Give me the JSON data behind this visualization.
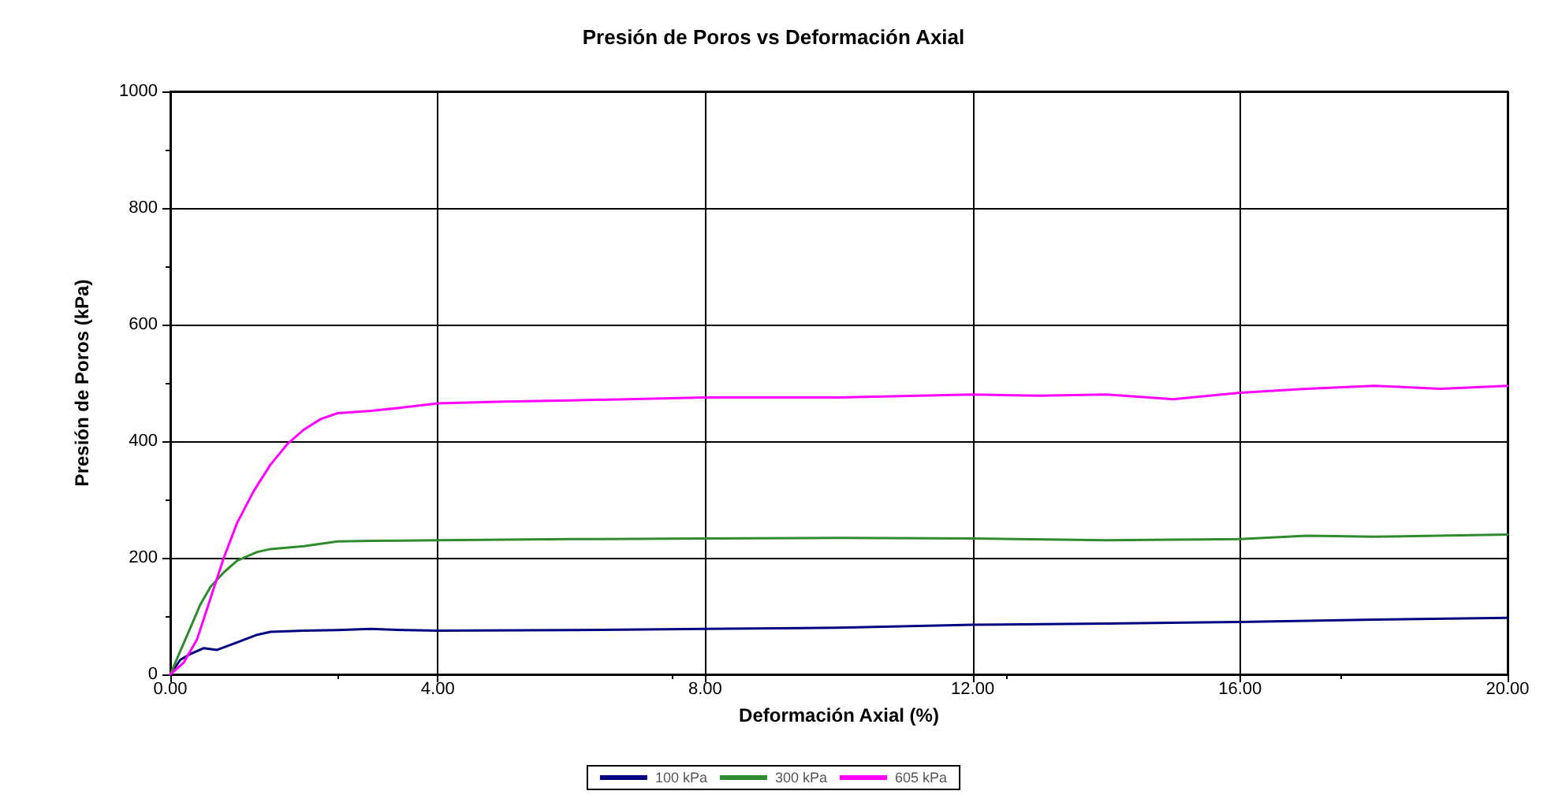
{
  "chart_data": {
    "type": "line",
    "title": "Presión de Poros vs Deformación Axial",
    "xlabel": "Deformación Axial (%)",
    "ylabel": "Presión de Poros (kPa)",
    "xlim": [
      0,
      20
    ],
    "xticks": [
      {
        "value": 0,
        "label": "0.00"
      },
      {
        "value": 4,
        "label": "4.00"
      },
      {
        "value": 8,
        "label": "8.00"
      },
      {
        "value": 12,
        "label": "12.00"
      },
      {
        "value": 16,
        "label": "16.00"
      },
      {
        "value": 20,
        "label": "20.00"
      }
    ],
    "ylim": [
      0,
      1000
    ],
    "yticks": [
      0,
      200,
      400,
      600,
      800,
      1000
    ],
    "grid": true,
    "legend": "bottom",
    "marker": "none",
    "line_style": "solid",
    "series": [
      {
        "name": "100 kPa",
        "color": "#000080",
        "x": [
          0,
          0.15,
          0.3,
          0.5,
          0.7,
          1.0,
          1.3,
          1.5,
          2.0,
          2.5,
          3.0,
          3.5,
          4.0,
          6.0,
          8.0,
          10.0,
          12.0,
          14.0,
          16.0,
          18.0,
          20.0
        ],
        "values": [
          0,
          25,
          35,
          45,
          42,
          55,
          68,
          73,
          75,
          76,
          78,
          76,
          75,
          76,
          78,
          80,
          85,
          87,
          90,
          94,
          97
        ]
      },
      {
        "name": "300 kPa",
        "color": "#2e8b2e",
        "x": [
          0,
          0.15,
          0.3,
          0.45,
          0.6,
          0.8,
          1.0,
          1.3,
          1.5,
          2.0,
          2.5,
          3.0,
          4.0,
          6.0,
          8.0,
          10.0,
          12.0,
          14.0,
          15.0,
          16.0,
          17.0,
          18.0,
          20.0
        ],
        "values": [
          0,
          40,
          80,
          120,
          150,
          175,
          195,
          210,
          215,
          220,
          228,
          229,
          230,
          232,
          233,
          234,
          233,
          230,
          231,
          232,
          238,
          236,
          240
        ]
      },
      {
        "name": "605 kPa",
        "color": "#ff00ff",
        "x": [
          0,
          0.2,
          0.4,
          0.6,
          0.8,
          1.0,
          1.25,
          1.5,
          1.75,
          2.0,
          2.25,
          2.5,
          3.0,
          3.5,
          4.0,
          5.0,
          6.0,
          8.0,
          10.0,
          12.0,
          13.0,
          14.0,
          15.0,
          16.0,
          17.0,
          18.0,
          19.0,
          20.0
        ],
        "values": [
          0,
          20,
          60,
          130,
          200,
          260,
          315,
          360,
          395,
          420,
          438,
          448,
          452,
          458,
          465,
          468,
          470,
          475,
          475,
          480,
          478,
          480,
          472,
          483,
          490,
          495,
          490,
          495
        ]
      }
    ]
  }
}
